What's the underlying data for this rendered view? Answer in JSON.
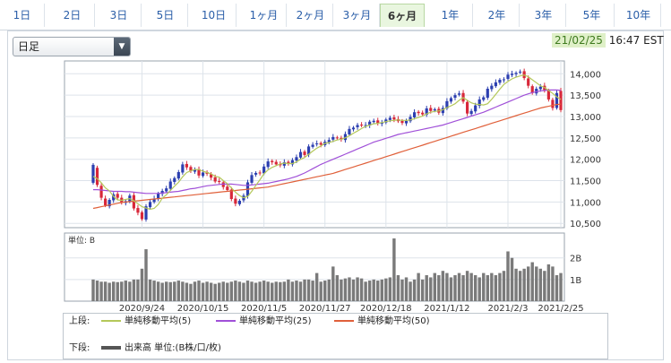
{
  "tabs": [
    {
      "label": "1日",
      "active": false
    },
    {
      "label": "2日",
      "active": false
    },
    {
      "label": "3日",
      "active": false
    },
    {
      "label": "5日",
      "active": false
    },
    {
      "label": "10日",
      "active": false
    },
    {
      "label": "1ヶ月",
      "active": false
    },
    {
      "label": "2ヶ月",
      "active": false
    },
    {
      "label": "3ヶ月",
      "active": false
    },
    {
      "label": "6ヶ月",
      "active": true
    },
    {
      "label": "1年",
      "active": false
    },
    {
      "label": "2年",
      "active": false
    },
    {
      "label": "3年",
      "active": false
    },
    {
      "label": "5年",
      "active": false
    },
    {
      "label": "10年",
      "active": false
    }
  ],
  "selector": {
    "value": "日足"
  },
  "timestamp": {
    "date": "21/02/25",
    "time": "16:47 EST"
  },
  "legend": {
    "upper_label": "上段:",
    "lower_label": "下段:",
    "items": [
      {
        "label": "単純移動平均(5)",
        "color": "#b4c85a"
      },
      {
        "label": "単純移動平均(25)",
        "color": "#a050d8"
      },
      {
        "label": "単純移動平均(50)",
        "color": "#e0603a"
      }
    ],
    "volume_label": "出来高 単位:(B株/口/枚)",
    "volume_color": "#555555"
  },
  "chart_data": [
    {
      "type": "candlestick",
      "x_ticks": [
        "2020/9/24",
        "2020/10/15",
        "2020/11/5",
        "2020/11/27",
        "2020/12/18",
        "2021/1/12",
        "2021/2/3",
        "2021/2/25"
      ],
      "y_ticks": [
        "14,000",
        "13,500",
        "13,000",
        "12,500",
        "12,000",
        "11,500",
        "11,000",
        "10,500"
      ],
      "ylim": [
        10400,
        14300
      ],
      "grid": true,
      "colors": {
        "up": "#2c3fb0",
        "down": "#d8283a",
        "sma5": "#b4c85a",
        "sma25": "#a050d8",
        "sma50": "#e0603a"
      },
      "closes": [
        11870,
        11400,
        11100,
        10920,
        11050,
        11180,
        11100,
        10990,
        11020,
        11150,
        10850,
        10750,
        10600,
        10900,
        11000,
        11080,
        11200,
        11260,
        11320,
        11480,
        11560,
        11700,
        11880,
        11810,
        11720,
        11760,
        11620,
        11690,
        11660,
        11570,
        11480,
        11470,
        11350,
        11280,
        11070,
        10960,
        11030,
        11150,
        11460,
        11630,
        11680,
        11680,
        11830,
        11950,
        11930,
        11880,
        11860,
        11930,
        11890,
        11980,
        12050,
        12170,
        12100,
        12300,
        12340,
        12370,
        12340,
        12410,
        12450,
        12520,
        12490,
        12460,
        12590,
        12710,
        12740,
        12800,
        12790,
        12800,
        12880,
        12900,
        12840,
        12850,
        12930,
        12970,
        12930,
        12890,
        12850,
        12900,
        12990,
        13100,
        13080,
        13050,
        13190,
        13130,
        13170,
        13090,
        13200,
        13360,
        13430,
        13500,
        13540,
        13350,
        13070,
        13130,
        13260,
        13400,
        13450,
        13650,
        13720,
        13800,
        13860,
        13870,
        13980,
        14000,
        14020,
        14050,
        13900,
        13720,
        13550,
        13650,
        13700,
        13600,
        13400,
        13200,
        13550,
        13150
      ],
      "opens": [
        11450,
        11800,
        11380,
        11080,
        10900,
        11040,
        11190,
        11100,
        10980,
        11010,
        11160,
        10860,
        10760,
        10590,
        10880,
        11000,
        11070,
        11190,
        11250,
        11310,
        11470,
        11550,
        11690,
        11890,
        11820,
        11710,
        11770,
        11610,
        11700,
        11650,
        11580,
        11490,
        11460,
        11360,
        11290,
        11080,
        10950,
        11040,
        11140,
        11450,
        11640,
        11690,
        11670,
        11820,
        11960,
        11940,
        11890,
        11850,
        11940,
        11880,
        11970,
        12040,
        12180,
        12110,
        12290,
        12350,
        12380,
        12330,
        12400,
        12460,
        12510,
        12500,
        12450,
        12580,
        12700,
        12750,
        12810,
        12780,
        12790,
        12870,
        12910,
        12830,
        12860,
        12920,
        12980,
        12940,
        12900,
        12840,
        12890,
        12980,
        13110,
        13090,
        13040,
        13200,
        13140,
        13180,
        13080,
        13190,
        13350,
        13440,
        13510,
        13550,
        13340,
        13060,
        13120,
        13250,
        13390,
        13440,
        13640,
        13710,
        13790,
        13850,
        13880,
        13970,
        13990,
        14030,
        14060,
        13890,
        13710,
        13540,
        13640,
        13720,
        13610,
        13390,
        13200,
        13600
      ],
      "sma5": [
        11600,
        11550,
        11450,
        11330,
        11260,
        11130,
        11050,
        11040,
        11060,
        11080,
        11030,
        10960,
        10890,
        10860,
        10830,
        10850,
        10940,
        11090,
        11170,
        11270,
        11370,
        11460,
        11590,
        11690,
        11730,
        11760,
        11760,
        11720,
        11690,
        11660,
        11600,
        11580,
        11500,
        11430,
        11330,
        11230,
        11150,
        11100,
        11130,
        11250,
        11390,
        11520,
        11660,
        11750,
        11810,
        11850,
        11890,
        11910,
        11900,
        11900,
        11940,
        12000,
        12040,
        12120,
        12190,
        12260,
        12310,
        12370,
        12390,
        12420,
        12450,
        12470,
        12500,
        12550,
        12610,
        12660,
        12720,
        12770,
        12800,
        12830,
        12840,
        12860,
        12880,
        12900,
        12910,
        12920,
        12910,
        12910,
        12920,
        12950,
        12980,
        13010,
        13060,
        13100,
        13120,
        13130,
        13160,
        13210,
        13250,
        13300,
        13380,
        13440,
        13380,
        13320,
        13290,
        13280,
        13270,
        13300,
        13400,
        13520,
        13640,
        13750,
        13820,
        13880,
        13920,
        13950,
        13970,
        13930,
        13860,
        13790,
        13720,
        13680,
        13610,
        13540,
        13460,
        13400
      ],
      "sma25": [
        11290,
        11290,
        11280,
        11270,
        11260,
        11250,
        11250,
        11250,
        11240,
        11240,
        11230,
        11220,
        11210,
        11200,
        11200,
        11200,
        11200,
        11210,
        11220,
        11230,
        11240,
        11250,
        11270,
        11290,
        11310,
        11320,
        11340,
        11360,
        11380,
        11390,
        11400,
        11410,
        11420,
        11420,
        11420,
        11410,
        11400,
        11390,
        11390,
        11400,
        11410,
        11420,
        11430,
        11440,
        11460,
        11480,
        11500,
        11520,
        11540,
        11570,
        11600,
        11640,
        11680,
        11730,
        11780,
        11830,
        11880,
        11920,
        11960,
        12000,
        12040,
        12080,
        12120,
        12160,
        12200,
        12240,
        12280,
        12320,
        12360,
        12400,
        12430,
        12460,
        12490,
        12520,
        12550,
        12580,
        12600,
        12620,
        12640,
        12660,
        12680,
        12700,
        12720,
        12740,
        12760,
        12780,
        12800,
        12830,
        12860,
        12890,
        12920,
        12950,
        12980,
        13010,
        13040,
        13070,
        13100,
        13140,
        13180,
        13220,
        13260,
        13300,
        13340,
        13380,
        13420,
        13460,
        13500,
        13530,
        13560,
        13580,
        13600,
        13610,
        13620,
        13620,
        13620,
        13610
      ],
      "sma50": [
        10850,
        10870,
        10890,
        10910,
        10930,
        10950,
        10970,
        10990,
        11000,
        11010,
        11020,
        11030,
        11040,
        11050,
        11060,
        11070,
        11080,
        11090,
        11100,
        11110,
        11120,
        11130,
        11140,
        11150,
        11160,
        11170,
        11180,
        11190,
        11200,
        11210,
        11220,
        11230,
        11240,
        11250,
        11260,
        11270,
        11280,
        11290,
        11300,
        11310,
        11320,
        11330,
        11340,
        11350,
        11370,
        11390,
        11410,
        11430,
        11450,
        11470,
        11490,
        11510,
        11530,
        11550,
        11570,
        11590,
        11610,
        11630,
        11650,
        11670,
        11700,
        11730,
        11760,
        11790,
        11820,
        11850,
        11880,
        11910,
        11940,
        11970,
        12000,
        12030,
        12060,
        12090,
        12120,
        12150,
        12180,
        12210,
        12240,
        12270,
        12300,
        12330,
        12360,
        12390,
        12420,
        12450,
        12480,
        12510,
        12540,
        12570,
        12600,
        12630,
        12660,
        12690,
        12720,
        12750,
        12780,
        12810,
        12840,
        12870,
        12900,
        12930,
        12960,
        12990,
        13020,
        13050,
        13080,
        13110,
        13140,
        13170,
        13200,
        13220,
        13240,
        13260,
        13280,
        13290
      ]
    },
    {
      "type": "bar",
      "unit": "単位: B",
      "y_ticks": [
        "2B",
        "1B"
      ],
      "ylim": [
        0,
        2.9
      ],
      "values": [
        1.0,
        0.95,
        0.9,
        0.9,
        0.85,
        0.9,
        0.88,
        0.9,
        0.95,
        0.9,
        1.0,
        1.0,
        1.5,
        2.4,
        1.0,
        0.95,
        0.9,
        0.85,
        0.9,
        0.88,
        0.9,
        0.95,
        0.9,
        0.85,
        0.8,
        0.9,
        0.95,
        0.85,
        0.9,
        0.85,
        0.8,
        0.85,
        0.9,
        0.85,
        0.9,
        0.95,
        0.9,
        0.85,
        0.95,
        0.9,
        0.85,
        0.9,
        0.95,
        0.9,
        0.85,
        0.9,
        0.88,
        0.9,
        1.0,
        0.9,
        0.95,
        0.9,
        1.0,
        1.0,
        0.95,
        1.3,
        0.9,
        0.95,
        1.0,
        1.6,
        1.2,
        1.0,
        1.05,
        1.1,
        1.0,
        1.1,
        1.05,
        0.9,
        0.95,
        1.0,
        0.95,
        1.0,
        1.05,
        1.1,
        2.9,
        1.2,
        1.0,
        1.1,
        0.9,
        1.0,
        1.3,
        1.0,
        1.2,
        1.1,
        1.3,
        1.2,
        1.4,
        1.3,
        1.1,
        1.2,
        1.3,
        1.2,
        1.4,
        1.3,
        1.2,
        1.1,
        1.3,
        1.2,
        1.3,
        1.2,
        1.3,
        1.4,
        2.3,
        2.0,
        1.5,
        1.4,
        1.5,
        1.6,
        1.8,
        1.6,
        1.5,
        1.4,
        1.7,
        1.6,
        1.2,
        1.3
      ]
    }
  ]
}
